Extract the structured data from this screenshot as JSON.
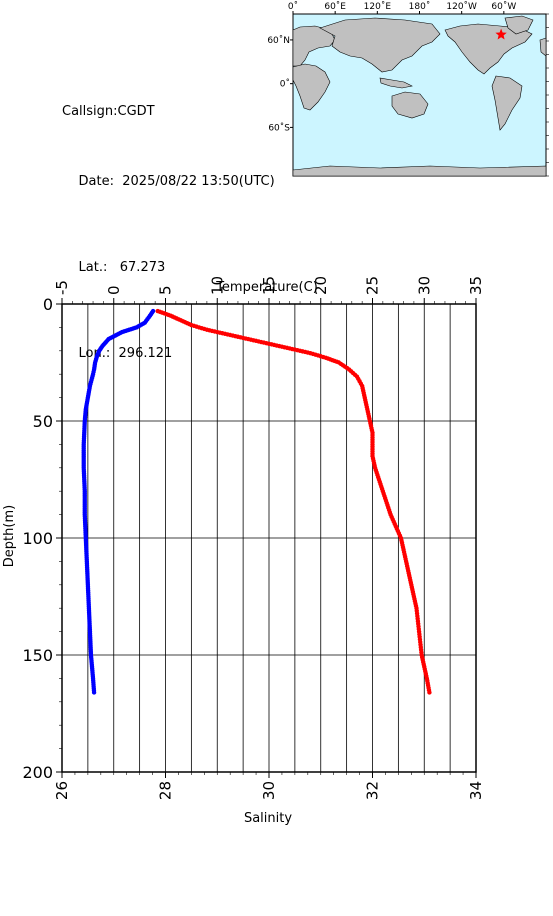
{
  "station": {
    "callsign_label": "Callsign:CGDT",
    "date_label": "Date:",
    "date_value": "2025/08/22 13:50(UTC)",
    "lat_label": "Lat.:",
    "lat_value": "67.273",
    "lon_label": "Lon.:",
    "lon_value": "296.121"
  },
  "map": {
    "lon_ticks": [
      "0˚",
      "60˚E",
      "120˚E",
      "180˚",
      "120˚W",
      "60˚W"
    ],
    "lat_ticks": [
      "60˚N",
      "0˚",
      "60˚S"
    ],
    "land_color": "#c0c0c0",
    "ocean_color": "#ccf5ff",
    "marker_color": "#ff0000"
  },
  "chart_data": {
    "type": "line",
    "top_axis_label": "Temperature(C)",
    "bottom_axis_label": "Salinity",
    "ylabel": "Depth(m)",
    "temperature_range": [
      -5,
      35
    ],
    "temperature_ticks": [
      "-5",
      "0",
      "5",
      "10",
      "15",
      "20",
      "25",
      "30",
      "35"
    ],
    "salinity_range": [
      26,
      34
    ],
    "salinity_ticks": [
      "26",
      "28",
      "30",
      "32",
      "34"
    ],
    "depth_range": [
      0,
      200
    ],
    "depth_ticks": [
      "0",
      "50",
      "100",
      "150",
      "200"
    ],
    "grid": true,
    "series": [
      {
        "color": "#0000ff",
        "axis": "temperature",
        "depth": [
          3,
          5,
          8,
          10,
          12,
          15,
          18,
          20,
          22,
          25,
          28,
          30,
          35,
          40,
          45,
          50,
          60,
          70,
          80,
          90,
          100,
          110,
          120,
          130,
          140,
          150,
          160,
          166
        ],
        "values": [
          3.8,
          3.5,
          3.0,
          2.2,
          0.8,
          -0.5,
          -1.1,
          -1.4,
          -1.6,
          -1.8,
          -1.9,
          -2.0,
          -2.3,
          -2.5,
          -2.7,
          -2.8,
          -2.9,
          -2.9,
          -2.8,
          -2.8,
          -2.7,
          -2.6,
          -2.5,
          -2.4,
          -2.3,
          -2.2,
          -2.0,
          -1.9
        ]
      },
      {
        "color": "#ff0000",
        "axis": "salinity",
        "depth": [
          3,
          5,
          7,
          9,
          11,
          13,
          15,
          17,
          19,
          21,
          23,
          25,
          28,
          31,
          35,
          40,
          45,
          50,
          55,
          60,
          65,
          70,
          80,
          90,
          95,
          100,
          110,
          120,
          130,
          140,
          150,
          160,
          166
        ],
        "values": [
          27.85,
          28.1,
          28.3,
          28.5,
          28.8,
          29.2,
          29.6,
          30.0,
          30.4,
          30.8,
          31.1,
          31.35,
          31.55,
          31.7,
          31.8,
          31.85,
          31.9,
          31.95,
          32.0,
          32.0,
          32.0,
          32.05,
          32.2,
          32.35,
          32.45,
          32.55,
          32.65,
          32.75,
          32.85,
          32.9,
          32.95,
          33.05,
          33.1
        ]
      }
    ]
  }
}
